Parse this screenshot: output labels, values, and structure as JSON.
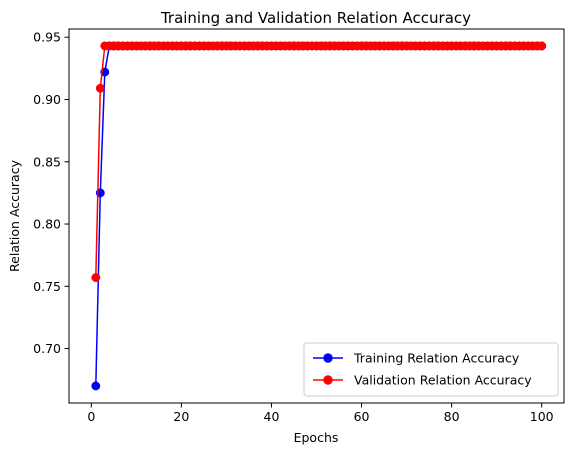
{
  "chart_data": {
    "type": "line",
    "title": "Training and Validation Relation Accuracy",
    "xlabel": "Epochs",
    "ylabel": "Relation Accuracy",
    "xlim": [
      -4.95,
      104.95
    ],
    "ylim": [
      0.6563,
      0.9566
    ],
    "xticks": [
      0,
      20,
      40,
      60,
      80,
      100
    ],
    "xtick_labels": [
      "0",
      "20",
      "40",
      "60",
      "80",
      "100"
    ],
    "yticks": [
      0.7,
      0.75,
      0.8,
      0.85,
      0.9,
      0.95
    ],
    "ytick_labels": [
      "0.70",
      "0.75",
      "0.80",
      "0.85",
      "0.90",
      "0.95"
    ],
    "grid": false,
    "legend_position": "lower-right",
    "series": [
      {
        "name": "Training Relation Accuracy",
        "color": "#0000ff",
        "marker": "circle",
        "head": [
          [
            1,
            0.67
          ],
          [
            2,
            0.825
          ],
          [
            3,
            0.922
          ],
          [
            4,
            0.943
          ]
        ],
        "plateau": {
          "from": 4,
          "to": 100,
          "value": 0.943
        }
      },
      {
        "name": "Validation Relation Accuracy",
        "color": "#ff0000",
        "marker": "circle",
        "head": [
          [
            1,
            0.757
          ],
          [
            2,
            0.909
          ],
          [
            3,
            0.943
          ]
        ],
        "plateau": {
          "from": 3,
          "to": 100,
          "value": 0.943
        }
      }
    ]
  }
}
